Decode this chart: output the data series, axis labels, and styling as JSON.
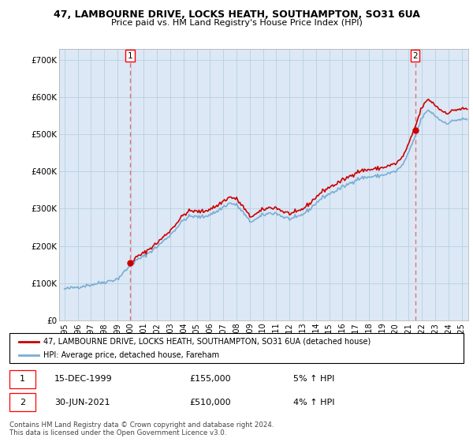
{
  "title": "47, LAMBOURNE DRIVE, LOCKS HEATH, SOUTHAMPTON, SO31 6UA",
  "subtitle": "Price paid vs. HM Land Registry's House Price Index (HPI)",
  "legend_label_red": "47, LAMBOURNE DRIVE, LOCKS HEATH, SOUTHAMPTON, SO31 6UA (detached house)",
  "legend_label_blue": "HPI: Average price, detached house, Fareham",
  "annotation1_date": "15-DEC-1999",
  "annotation1_price": "£155,000",
  "annotation1_hpi": "5% ↑ HPI",
  "annotation1_year": 1999.96,
  "annotation1_value": 155000,
  "annotation2_date": "30-JUN-2021",
  "annotation2_price": "£510,000",
  "annotation2_hpi": "4% ↑ HPI",
  "annotation2_year": 2021.5,
  "annotation2_value": 510000,
  "footer": "Contains HM Land Registry data © Crown copyright and database right 2024.\nThis data is licensed under the Open Government Licence v3.0.",
  "ylim": [
    0,
    730000
  ],
  "yticks": [
    0,
    100000,
    200000,
    300000,
    400000,
    500000,
    600000,
    700000
  ],
  "ytick_labels": [
    "£0",
    "£100K",
    "£200K",
    "£300K",
    "£400K",
    "£500K",
    "£600K",
    "£700K"
  ],
  "background_color": "#ffffff",
  "chart_bg_color": "#dce8f5",
  "grid_color": "#b8cfe0",
  "red_color": "#cc0000",
  "blue_color": "#7aadd4",
  "dashed_color": "#e87070",
  "xlim_left": 1994.6,
  "xlim_right": 2025.5,
  "xtick_years": [
    1995,
    1996,
    1997,
    1998,
    1999,
    2000,
    2001,
    2002,
    2003,
    2004,
    2005,
    2006,
    2007,
    2008,
    2009,
    2010,
    2011,
    2012,
    2013,
    2014,
    2015,
    2016,
    2017,
    2018,
    2019,
    2020,
    2021,
    2022,
    2023,
    2024,
    2025
  ]
}
